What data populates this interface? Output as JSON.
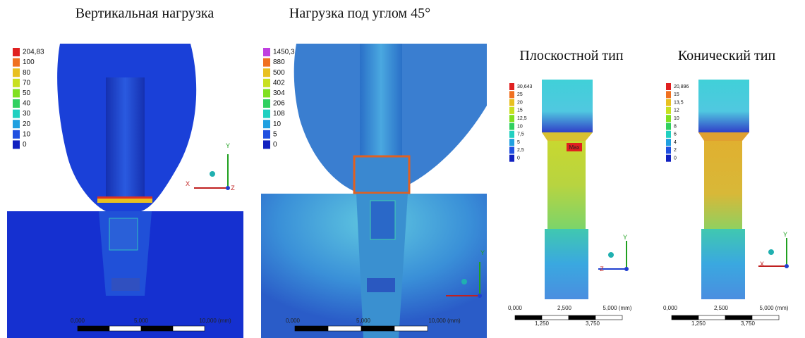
{
  "panels": [
    {
      "title": "Вертикальная нагрузка",
      "legend": [
        "204,83",
        "100",
        "80",
        "70",
        "50",
        "40",
        "30",
        "20",
        "10",
        "0"
      ],
      "scale_labels": [
        "0,000",
        "5,000",
        "10,000 (mm)"
      ],
      "axis_labels": [
        "Y",
        "X",
        "Z"
      ]
    },
    {
      "title": "Нагрузка под углом 45°",
      "legend": [
        "1450,3",
        "880",
        "500",
        "402",
        "304",
        "206",
        "108",
        "10",
        "5",
        "0"
      ],
      "scale_labels": [
        "0,000",
        "5,000",
        "10,000 (mm)"
      ],
      "axis_labels": [
        "Y"
      ]
    },
    {
      "title": "Плоскостной тип",
      "legend": [
        "30,643",
        "25",
        "20",
        "15",
        "12,5",
        "10",
        "7,5",
        "5",
        "2,5",
        "0"
      ],
      "scale_labels": [
        "0,000",
        "2,500",
        "5,000 (mm)",
        "1,250",
        "3,750"
      ],
      "axis_labels": [
        "Y",
        "Z"
      ],
      "marker": "Max"
    },
    {
      "title": "Конический тип",
      "legend": [
        "20,896",
        "15",
        "13,5",
        "12",
        "10",
        "8",
        "6",
        "4",
        "2",
        "0"
      ],
      "scale_labels": [
        "0,000",
        "2,500",
        "5,000 (mm)",
        "1,250",
        "3,750"
      ],
      "axis_labels": [
        "Y",
        "X"
      ]
    }
  ]
}
